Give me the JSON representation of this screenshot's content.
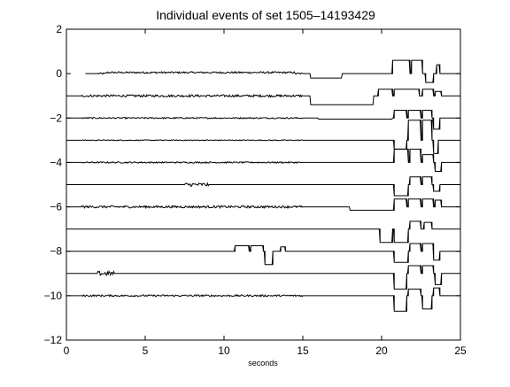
{
  "chart_data": {
    "type": "line",
    "title": "Individual events of set 1505–14193429",
    "xlabel": "seconds",
    "ylabel": "",
    "xlim": [
      0,
      25
    ],
    "ylim": [
      -12,
      2
    ],
    "x_ticks": [
      0,
      5,
      10,
      15,
      20,
      25
    ],
    "y_ticks": [
      2,
      0,
      -2,
      -4,
      -6,
      -8,
      -10,
      -12
    ],
    "x_tick_labels": [
      "0",
      "5",
      "10",
      "15",
      "20",
      "25"
    ],
    "y_tick_labels": [
      "2",
      "0",
      "−2",
      "−4",
      "−6",
      "−8",
      "−10",
      "−12"
    ],
    "grid": false,
    "legend": "none",
    "line_color": "#000000",
    "series": [
      {
        "baseline": 0,
        "start": 1.2,
        "noise": [
          [
            2,
            15,
            0.04
          ]
        ],
        "bumps": [
          [
            2.5,
            14.5,
            0.05
          ],
          [
            15.5,
            17.5,
            -0.2
          ]
        ],
        "pulses": [
          [
            20.7,
            21.0,
            0.6
          ],
          [
            21.0,
            21.8,
            0.6
          ],
          [
            21.9,
            22.6,
            0.6
          ],
          [
            22.8,
            23.3,
            -0.4
          ],
          [
            23.5,
            23.7,
            0.4
          ]
        ]
      },
      {
        "baseline": -1,
        "start": 0.0,
        "noise": [
          [
            1,
            15,
            0.05
          ]
        ],
        "bumps": [
          [
            15.5,
            19.5,
            -0.4
          ]
        ],
        "pulses": [
          [
            19.8,
            20.7,
            0.3
          ],
          [
            20.8,
            21.6,
            0.3
          ],
          [
            21.6,
            22.4,
            0.3
          ],
          [
            22.6,
            23.3,
            0.3
          ],
          [
            23.4,
            23.8,
            0.2
          ]
        ]
      },
      {
        "baseline": -2,
        "start": 0.0,
        "noise": [
          [
            1,
            15,
            0.03
          ]
        ],
        "bumps": [
          [
            16,
            20.7,
            -0.05
          ]
        ],
        "pulses": [
          [
            20.8,
            21.6,
            0.35
          ],
          [
            21.7,
            22.5,
            0.35
          ],
          [
            22.6,
            23.2,
            0.35
          ],
          [
            23.3,
            23.7,
            -0.5
          ]
        ]
      },
      {
        "baseline": -3,
        "start": 0.0,
        "noise": [
          [
            1,
            15,
            0.02
          ]
        ],
        "bumps": [],
        "pulses": [
          [
            20.8,
            21.6,
            -0.4
          ],
          [
            21.7,
            22.5,
            0.9
          ],
          [
            22.6,
            23.2,
            0.9
          ],
          [
            23.3,
            23.6,
            -0.6
          ]
        ]
      },
      {
        "baseline": -4,
        "start": 0.0,
        "noise": [
          [
            1,
            15,
            0.03
          ]
        ],
        "bumps": [],
        "pulses": [
          [
            20.8,
            21.7,
            0.6
          ],
          [
            21.8,
            22.5,
            0.6
          ],
          [
            22.6,
            23.3,
            0.35
          ],
          [
            23.4,
            23.8,
            -0.4
          ]
        ]
      },
      {
        "baseline": -5,
        "start": 0.0,
        "noise": [
          [
            7.5,
            9,
            0.08
          ]
        ],
        "bumps": [],
        "pulses": [
          [
            20.8,
            21.7,
            -0.5
          ],
          [
            21.8,
            22.5,
            0.35
          ],
          [
            22.6,
            23.2,
            0.35
          ],
          [
            23.3,
            23.7,
            -0.3
          ]
        ]
      },
      {
        "baseline": -6,
        "start": 0.0,
        "noise": [
          [
            1,
            15,
            0.05
          ]
        ],
        "bumps": [
          [
            18,
            20.8,
            -0.15
          ]
        ],
        "pulses": [
          [
            20.8,
            21.6,
            0.35
          ],
          [
            21.7,
            22.5,
            0.35
          ],
          [
            22.6,
            23.3,
            0.35
          ],
          [
            23.4,
            23.8,
            0.3
          ]
        ]
      },
      {
        "baseline": -7,
        "start": 0.0,
        "noise": [],
        "bumps": [],
        "pulses": [
          [
            19.9,
            20.7,
            -0.6
          ],
          [
            20.8,
            21.7,
            -0.6
          ],
          [
            21.8,
            22.5,
            0.35
          ],
          [
            22.7,
            23.2,
            0.3
          ]
        ]
      },
      {
        "baseline": -8,
        "start": 0.0,
        "noise": [],
        "bumps": [],
        "pulses": [
          [
            10.7,
            11.6,
            0.25
          ],
          [
            11.7,
            12.5,
            0.25
          ],
          [
            12.6,
            13.1,
            -0.6
          ],
          [
            13.6,
            13.9,
            0.2
          ],
          [
            20.8,
            21.7,
            -0.5
          ],
          [
            21.8,
            22.5,
            0.35
          ],
          [
            22.6,
            23.3,
            0.35
          ],
          [
            23.3,
            23.7,
            -0.4
          ]
        ]
      },
      {
        "baseline": -9,
        "start": 0.0,
        "noise": [
          [
            2,
            3,
            0.1
          ]
        ],
        "bumps": [],
        "pulses": [
          [
            20.8,
            21.6,
            -0.7
          ],
          [
            21.7,
            22.5,
            0.35
          ],
          [
            22.6,
            23.3,
            0.35
          ],
          [
            23.4,
            23.8,
            -0.5
          ]
        ]
      },
      {
        "baseline": -10,
        "start": 0.0,
        "noise": [
          [
            1,
            15,
            0.04
          ]
        ],
        "bumps": [],
        "pulses": [
          [
            20.8,
            21.6,
            -0.7
          ],
          [
            21.7,
            22.5,
            0.3
          ],
          [
            22.6,
            23.2,
            -0.6
          ],
          [
            23.3,
            23.7,
            0.35
          ]
        ]
      }
    ]
  }
}
